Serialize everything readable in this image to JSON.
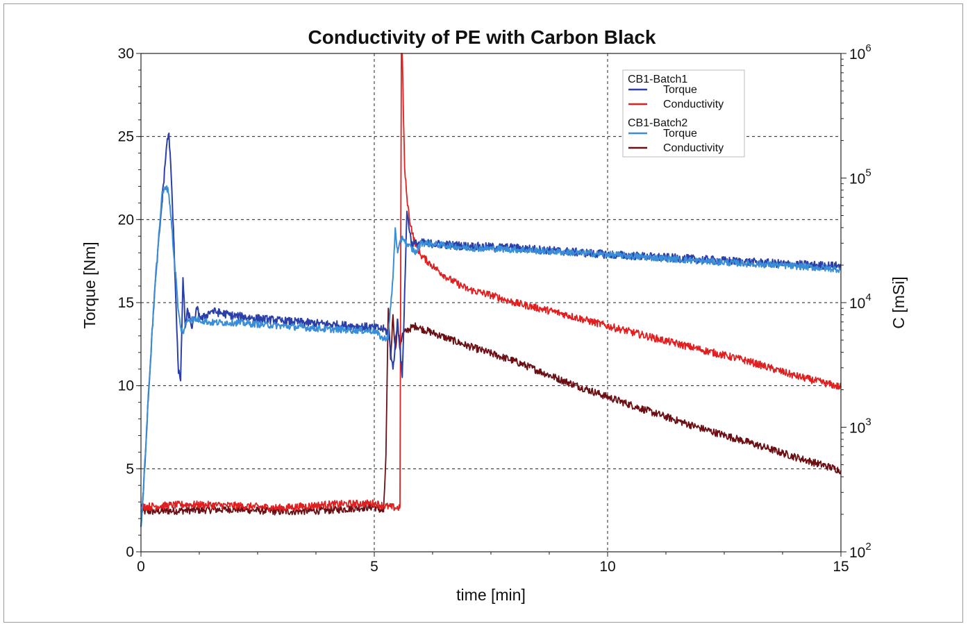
{
  "chart_data": {
    "type": "line",
    "title": "Conductivity of PE with Carbon Black",
    "xlabel": "time [min]",
    "ylabel": "Torque [Nm]",
    "y2label": "C [mSi]",
    "xlim": [
      0,
      15
    ],
    "ylim": [
      0,
      30
    ],
    "y2lim": [
      100,
      1000000
    ],
    "y2scale": "log",
    "grid": true,
    "legend_position": "top-right",
    "x_ticks": [
      "0",
      "5",
      "10",
      "15"
    ],
    "y_ticks": [
      "0",
      "5",
      "10",
      "15",
      "20",
      "25",
      "30"
    ],
    "y2_ticks": [
      {
        "base": "10",
        "exp": "2",
        "value": 100
      },
      {
        "base": "10",
        "exp": "3",
        "value": 1000
      },
      {
        "base": "10",
        "exp": "4",
        "value": 10000
      },
      {
        "base": "10",
        "exp": "5",
        "value": 100000
      },
      {
        "base": "10",
        "exp": "6",
        "value": 1000000
      }
    ],
    "legend_groups": [
      {
        "group": "CB1-Batch1",
        "entries": [
          {
            "label": "Torque",
            "color": "#2b3fa8"
          },
          {
            "label": "Conductivity",
            "color": "#e02020"
          }
        ]
      },
      {
        "group": "CB1-Batch2",
        "entries": [
          {
            "label": "Torque",
            "color": "#3a8ed8"
          },
          {
            "label": "Conductivity",
            "color": "#6b0f14"
          }
        ]
      }
    ],
    "series": [
      {
        "name": "CB1-Batch1 Torque",
        "axis": "left",
        "color": "#2b3fa8",
        "x": [
          0,
          0.05,
          0.15,
          0.3,
          0.45,
          0.55,
          0.6,
          0.65,
          0.7,
          0.75,
          0.8,
          0.85,
          0.9,
          0.95,
          1.0,
          1.1,
          1.2,
          1.3,
          1.5,
          2.0,
          3.0,
          4.0,
          5.0,
          5.2,
          5.3,
          5.4,
          5.5,
          5.6,
          5.7,
          5.8,
          6.0,
          7.0,
          8.0,
          10.0,
          12.0,
          14.0,
          15.0
        ],
        "y": [
          1.5,
          3.5,
          9.0,
          16.0,
          21.0,
          24.5,
          25.2,
          22.5,
          19.0,
          15.0,
          11.0,
          10.3,
          16.5,
          13.5,
          14.5,
          13.5,
          14.6,
          14.0,
          14.5,
          14.2,
          13.9,
          13.7,
          13.5,
          13.4,
          13.2,
          11.0,
          14.0,
          10.5,
          20.5,
          18.5,
          18.6,
          18.4,
          18.3,
          17.9,
          17.6,
          17.3,
          17.2
        ],
        "noise": 0.25
      },
      {
        "name": "CB1-Batch2 Torque",
        "axis": "left",
        "color": "#3a8ed8",
        "x": [
          0,
          0.05,
          0.15,
          0.3,
          0.45,
          0.55,
          0.6,
          0.65,
          0.7,
          0.75,
          0.8,
          0.85,
          0.9,
          1.0,
          1.2,
          1.5,
          2.0,
          3.0,
          4.0,
          5.0,
          5.2,
          5.3,
          5.4,
          5.45,
          5.5,
          5.6,
          5.7,
          5.9,
          6.0,
          7.0,
          8.0,
          10.0,
          12.0,
          14.0,
          15.0
        ],
        "y": [
          1.5,
          3.5,
          9.0,
          16.0,
          21.5,
          22.0,
          21.5,
          20.0,
          18.0,
          16.5,
          14.5,
          13.5,
          13.2,
          14.0,
          14.0,
          13.8,
          13.8,
          13.6,
          13.4,
          13.3,
          12.8,
          13.0,
          16.5,
          19.5,
          18.0,
          19.0,
          18.5,
          18.0,
          18.6,
          18.3,
          18.2,
          17.9,
          17.5,
          17.2,
          17.0
        ],
        "noise": 0.2
      },
      {
        "name": "CB1-Batch1 Conductivity",
        "axis": "right",
        "color": "#e02020",
        "x": [
          0,
          1.0,
          2.0,
          3.0,
          4.0,
          5.0,
          5.3,
          5.5,
          5.55,
          5.58,
          5.6,
          5.62,
          5.65,
          5.7,
          5.75,
          5.85,
          6.0,
          6.3,
          6.6,
          7.0,
          7.5,
          8.0,
          9.0,
          10.0,
          11.0,
          12.0,
          13.0,
          14.0,
          15.0
        ],
        "y": [
          230,
          240,
          235,
          225,
          240,
          245,
          230,
          225,
          230,
          1000000,
          1000000,
          400000,
          120000,
          70000,
          48000,
          32000,
          24000,
          19000,
          15500,
          12800,
          11500,
          10000,
          8200,
          6500,
          5200,
          4200,
          3400,
          2600,
          2100
        ],
        "noise": 0.03
      },
      {
        "name": "CB1-Batch2 Conductivity",
        "axis": "right",
        "color": "#6b0f14",
        "x": [
          0,
          1.0,
          2.0,
          3.0,
          4.0,
          5.0,
          5.2,
          5.25,
          5.3,
          5.35,
          5.4,
          5.45,
          5.5,
          5.55,
          5.6,
          5.7,
          5.8,
          5.9,
          6.0,
          7.0,
          8.0,
          9.0,
          10.0,
          11.0,
          12.0,
          13.0,
          14.0,
          15.0
        ],
        "y": [
          210,
          215,
          220,
          210,
          215,
          230,
          210,
          600,
          9000,
          3500,
          8000,
          4200,
          6500,
          4500,
          5500,
          6000,
          6300,
          6500,
          6200,
          4500,
          3400,
          2400,
          1750,
          1300,
          980,
          760,
          580,
          450
        ],
        "noise": 0.03
      }
    ]
  }
}
